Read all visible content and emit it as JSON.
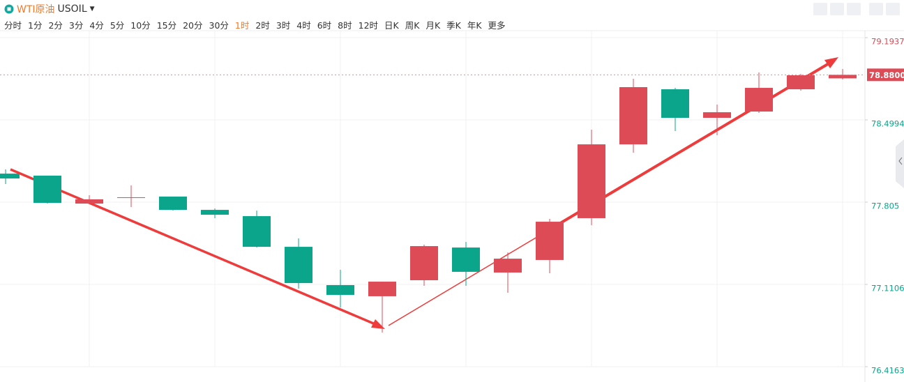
{
  "header": {
    "name": "WTI原油",
    "symbol": "USOIL"
  },
  "toolbar": {
    "intervals": [
      "分时",
      "1分",
      "2分",
      "3分",
      "4分",
      "5分",
      "10分",
      "15分",
      "20分",
      "30分",
      "1时",
      "2时",
      "3时",
      "4时",
      "6时",
      "8时",
      "12时",
      "日K",
      "周K",
      "月K",
      "季K",
      "年K",
      "更多"
    ],
    "active": 10
  },
  "chart_data": {
    "type": "candlestick",
    "up_color": "#dd4b57",
    "down_color": "#0aa58b",
    "open": [
      78.046,
      78.029,
      77.793,
      77.846,
      77.852,
      77.74,
      77.687,
      77.428,
      77.105,
      77.011,
      77.146,
      77.422,
      77.211,
      77.317,
      77.67,
      78.293,
      78.758,
      78.517,
      78.57,
      78.758,
      78.85
    ],
    "high": [
      78.082,
      78.029,
      77.864,
      77.946,
      77.852,
      77.752,
      77.734,
      77.499,
      77.234,
      77.134,
      77.446,
      77.47,
      77.381,
      77.664,
      78.417,
      78.847,
      78.77,
      78.629,
      78.9,
      78.888,
      78.929
    ],
    "low": [
      77.958,
      77.793,
      77.793,
      77.764,
      77.734,
      77.67,
      77.422,
      77.075,
      76.916,
      76.704,
      77.099,
      77.099,
      77.04,
      77.205,
      77.611,
      78.223,
      78.405,
      78.37,
      78.558,
      78.746,
      78.841
    ],
    "close": [
      78.005,
      77.799,
      77.829,
      77.846,
      77.74,
      77.699,
      77.428,
      77.122,
      77.022,
      77.134,
      77.434,
      77.217,
      77.328,
      77.64,
      78.293,
      78.776,
      78.517,
      78.564,
      78.77,
      78.876,
      78.88
    ],
    "ylim": [
      76.4163,
      79.2527
    ],
    "yticks": [
      79.1937,
      78.4994,
      77.805,
      77.1106,
      76.4163
    ],
    "last_price": {
      "value": 78.88,
      "label": "78.8800"
    },
    "grid": true
  }
}
